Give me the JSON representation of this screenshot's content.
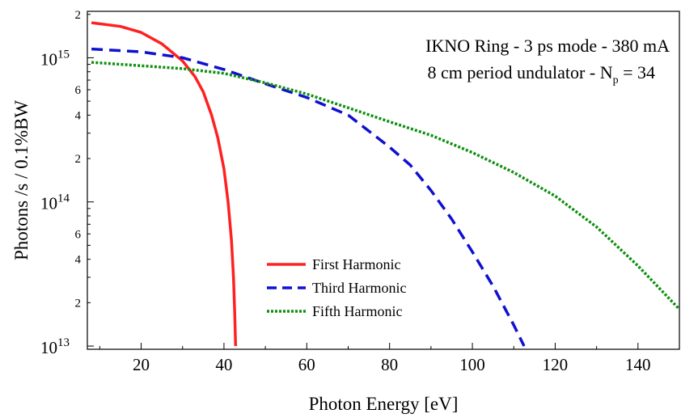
{
  "chart_data": {
    "type": "line",
    "annotation": {
      "line1": "IKNO Ring - 3 ps mode - 380 mA",
      "line2_prefix": "8 cm period undulator - N",
      "line2_sub": "p",
      "line2_suffix": " = 34"
    },
    "xlabel": "Photon Energy [eV]",
    "ylabel": "Photons /s / 0.1%BW",
    "xlim": [
      7,
      150
    ],
    "ylim": [
      9500000000000.0,
      2100000000000000.0
    ],
    "yscale": "log",
    "x_ticks": [
      "20",
      "40",
      "60",
      "80",
      "100",
      "120",
      "140"
    ],
    "y_major_ticks": [
      {
        "base": "10",
        "exp": "13",
        "value": 10000000000000.0
      },
      {
        "base": "10",
        "exp": "14",
        "value": 100000000000000.0
      },
      {
        "base": "10",
        "exp": "15",
        "value": 1000000000000000.0
      }
    ],
    "y_minor_labels": [
      {
        "label": "2",
        "value": 20000000000000.0
      },
      {
        "label": "4",
        "value": 40000000000000.0
      },
      {
        "label": "6",
        "value": 60000000000000.0
      },
      {
        "label": "2",
        "value": 200000000000000.0
      },
      {
        "label": "4",
        "value": 400000000000000.0
      },
      {
        "label": "6",
        "value": 600000000000000.0
      },
      {
        "label": "2",
        "value": 2000000000000000.0
      }
    ],
    "legend_position": "bottom-center",
    "series": [
      {
        "name": "First Harmonic",
        "color": "#ff2020",
        "style": "solid",
        "points": [
          [
            8,
            1750000000000000.0
          ],
          [
            15,
            1650000000000000.0
          ],
          [
            20,
            1500000000000000.0
          ],
          [
            25,
            1250000000000000.0
          ],
          [
            30,
            950000000000000.0
          ],
          [
            33,
            740000000000000.0
          ],
          [
            35,
            580000000000000.0
          ],
          [
            37,
            400000000000000.0
          ],
          [
            38.5,
            280000000000000.0
          ],
          [
            40,
            170000000000000.0
          ],
          [
            41,
            100000000000000.0
          ],
          [
            41.8,
            55000000000000.0
          ],
          [
            42.3,
            30000000000000.0
          ],
          [
            42.6,
            17000000000000.0
          ],
          [
            42.8,
            10000000000000.0
          ]
        ]
      },
      {
        "name": "Third Harmonic",
        "color": "#1010d0",
        "style": "dashed",
        "points": [
          [
            8,
            1150000000000000.0
          ],
          [
            20,
            1100000000000000.0
          ],
          [
            30,
            1000000000000000.0
          ],
          [
            40,
            830000000000000.0
          ],
          [
            50,
            660000000000000.0
          ],
          [
            60,
            530000000000000.0
          ],
          [
            70,
            400000000000000.0
          ],
          [
            75,
            310000000000000.0
          ],
          [
            80,
            240000000000000.0
          ],
          [
            85,
            180000000000000.0
          ],
          [
            90,
            120000000000000.0
          ],
          [
            95,
            76000000000000.0
          ],
          [
            100,
            45000000000000.0
          ],
          [
            105,
            26000000000000.0
          ],
          [
            110,
            14000000000000.0
          ],
          [
            112.5,
            10000000000000.0
          ]
        ]
      },
      {
        "name": "Fifth Harmonic",
        "color": "#109010",
        "style": "dotted",
        "points": [
          [
            8,
            930000000000000.0
          ],
          [
            20,
            880000000000000.0
          ],
          [
            30,
            840000000000000.0
          ],
          [
            40,
            780000000000000.0
          ],
          [
            50,
            670000000000000.0
          ],
          [
            60,
            560000000000000.0
          ],
          [
            70,
            450000000000000.0
          ],
          [
            80,
            360000000000000.0
          ],
          [
            90,
            290000000000000.0
          ],
          [
            100,
            220000000000000.0
          ],
          [
            110,
            160000000000000.0
          ],
          [
            120,
            110000000000000.0
          ],
          [
            130,
            67000000000000.0
          ],
          [
            140,
            36000000000000.0
          ],
          [
            150,
            18000000000000.0
          ]
        ]
      }
    ]
  }
}
